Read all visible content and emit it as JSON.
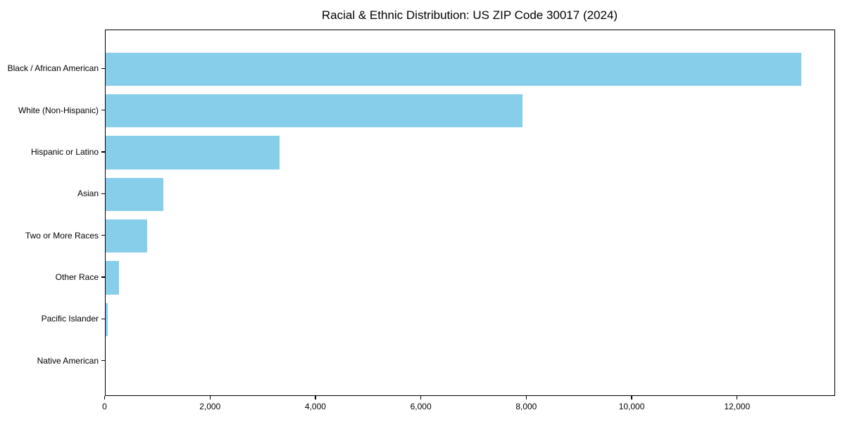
{
  "chart_data": {
    "type": "bar",
    "orientation": "horizontal",
    "title": "Racial & Ethnic Distribution: US ZIP Code 30017 (2024)",
    "categories": [
      "Black / African American",
      "White (Non-Hispanic)",
      "Hispanic or Latino",
      "Asian",
      "Two or More Races",
      "Other Race",
      "Pacific Islander",
      "Native American"
    ],
    "values": [
      13200,
      7920,
      3310,
      1100,
      795,
      265,
      45,
      0
    ],
    "xlabel": "",
    "ylabel": "",
    "xlim": [
      0,
      13860
    ],
    "x_ticks": [
      0,
      2000,
      4000,
      6000,
      8000,
      10000,
      12000
    ],
    "x_tick_labels": [
      "0",
      "2,000",
      "4,000",
      "6,000",
      "8,000",
      "10,000",
      "12,000"
    ],
    "bar_color": "#87CEEB",
    "frame_color": "#000000",
    "grid": false,
    "legend": null
  }
}
